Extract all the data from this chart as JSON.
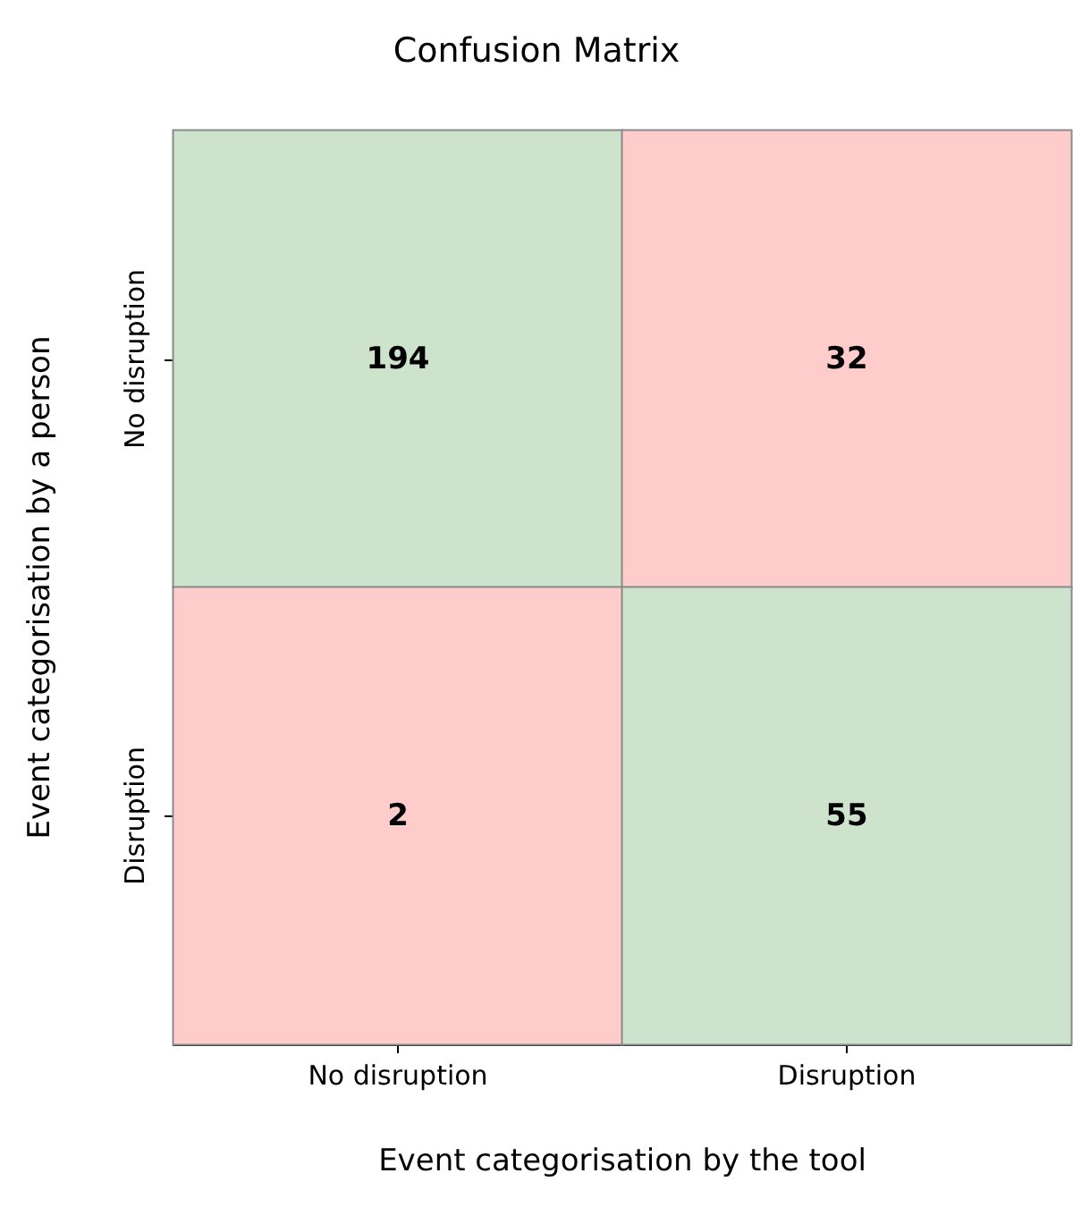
{
  "chart_data": {
    "type": "heatmap",
    "title": "Confusion Matrix",
    "xlabel": "Event categorisation by the tool",
    "ylabel": "Event categorisation by a person",
    "categories": [
      "No disruption",
      "Disruption"
    ],
    "y_categories": [
      "No disruption",
      "Disruption"
    ],
    "cells": [
      [
        194,
        32
      ],
      [
        2,
        55
      ]
    ],
    "colors": [
      "#cde3cc",
      "#ffcccc",
      "#ffcccc",
      "#cde3cc"
    ],
    "data_labels": true
  }
}
